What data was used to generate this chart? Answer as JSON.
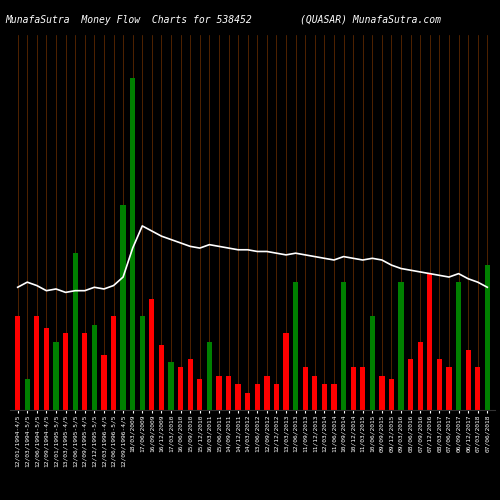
{
  "title_left": "MunafaSutra  Money Flow  Charts for 538452",
  "title_right": "(QUASAR) MunafaSutra.com",
  "background_color": "#000000",
  "bar_colors": [
    "red",
    "green",
    "red",
    "red",
    "green",
    "red",
    "green",
    "red",
    "green",
    "red",
    "red",
    "green",
    "green",
    "green",
    "red",
    "red",
    "green",
    "red",
    "red",
    "red",
    "green",
    "red",
    "red",
    "red",
    "red",
    "red",
    "red",
    "red",
    "red",
    "green",
    "red",
    "red",
    "red",
    "red",
    "green",
    "red",
    "red",
    "green",
    "red",
    "red",
    "green",
    "red",
    "red",
    "red",
    "red",
    "red",
    "green",
    "red",
    "red",
    "green"
  ],
  "bar_values": [
    5.5,
    1.8,
    5.5,
    4.8,
    4.0,
    4.5,
    9.2,
    4.5,
    5.0,
    3.2,
    5.5,
    12.0,
    19.5,
    5.5,
    6.5,
    3.8,
    2.8,
    2.5,
    3.0,
    1.8,
    4.0,
    2.0,
    2.0,
    1.5,
    1.0,
    1.5,
    2.0,
    1.5,
    4.5,
    7.5,
    2.5,
    2.0,
    1.5,
    1.5,
    7.5,
    2.5,
    2.5,
    5.5,
    2.0,
    1.8,
    7.5,
    3.0,
    4.0,
    8.0,
    3.0,
    2.5,
    7.5,
    3.5,
    2.5,
    8.5
  ],
  "line_values": [
    7.2,
    7.5,
    7.3,
    7.0,
    7.1,
    6.9,
    7.0,
    7.0,
    7.2,
    7.1,
    7.3,
    7.8,
    9.5,
    10.8,
    10.5,
    10.2,
    10.0,
    9.8,
    9.6,
    9.5,
    9.7,
    9.6,
    9.5,
    9.4,
    9.4,
    9.3,
    9.3,
    9.2,
    9.1,
    9.2,
    9.1,
    9.0,
    8.9,
    8.8,
    9.0,
    8.9,
    8.8,
    8.9,
    8.8,
    8.5,
    8.3,
    8.2,
    8.1,
    8.0,
    7.9,
    7.8,
    8.0,
    7.7,
    7.5,
    7.2
  ],
  "x_labels": [
    "12/01/1994-4/5",
    "12/03/1994-5/5",
    "12/06/1994-5/5",
    "12/09/1994-4/5",
    "12/01/1995-5/5",
    "13/03/1995-4/5",
    "12/06/1995-5/5",
    "12/09/1995-4/5",
    "12/12/1995-5/5",
    "12/03/1996-4/5",
    "12/06/1996-5/5",
    "12/09/1996-4/5",
    "18/03/2009",
    "17/06/2009",
    "16/09/2009",
    "16/12/2009",
    "17/03/2010",
    "16/06/2010",
    "15/09/2010",
    "15/12/2010",
    "16/03/2011",
    "15/06/2011",
    "14/09/2011",
    "14/12/2011",
    "14/03/2012",
    "13/06/2012",
    "12/09/2012",
    "12/12/2012",
    "13/03/2013",
    "12/06/2013",
    "11/09/2013",
    "11/12/2013",
    "12/03/2014",
    "11/06/2014",
    "10/09/2014",
    "10/12/2014",
    "11/03/2015",
    "10/06/2015",
    "09/09/2015",
    "09/12/2015",
    "09/03/2016",
    "08/06/2016",
    "07/09/2016",
    "07/12/2016",
    "08/03/2017",
    "07/06/2017",
    "06/09/2017",
    "06/12/2017",
    "07/03/2018",
    "07/06/2018"
  ],
  "grid_color": "#7B3500",
  "line_color": "#ffffff",
  "title_fontsize": 7,
  "tick_fontsize": 4.5,
  "ylim": [
    0,
    22
  ],
  "line_scale_min": 6.0,
  "line_scale_max": 12.0
}
